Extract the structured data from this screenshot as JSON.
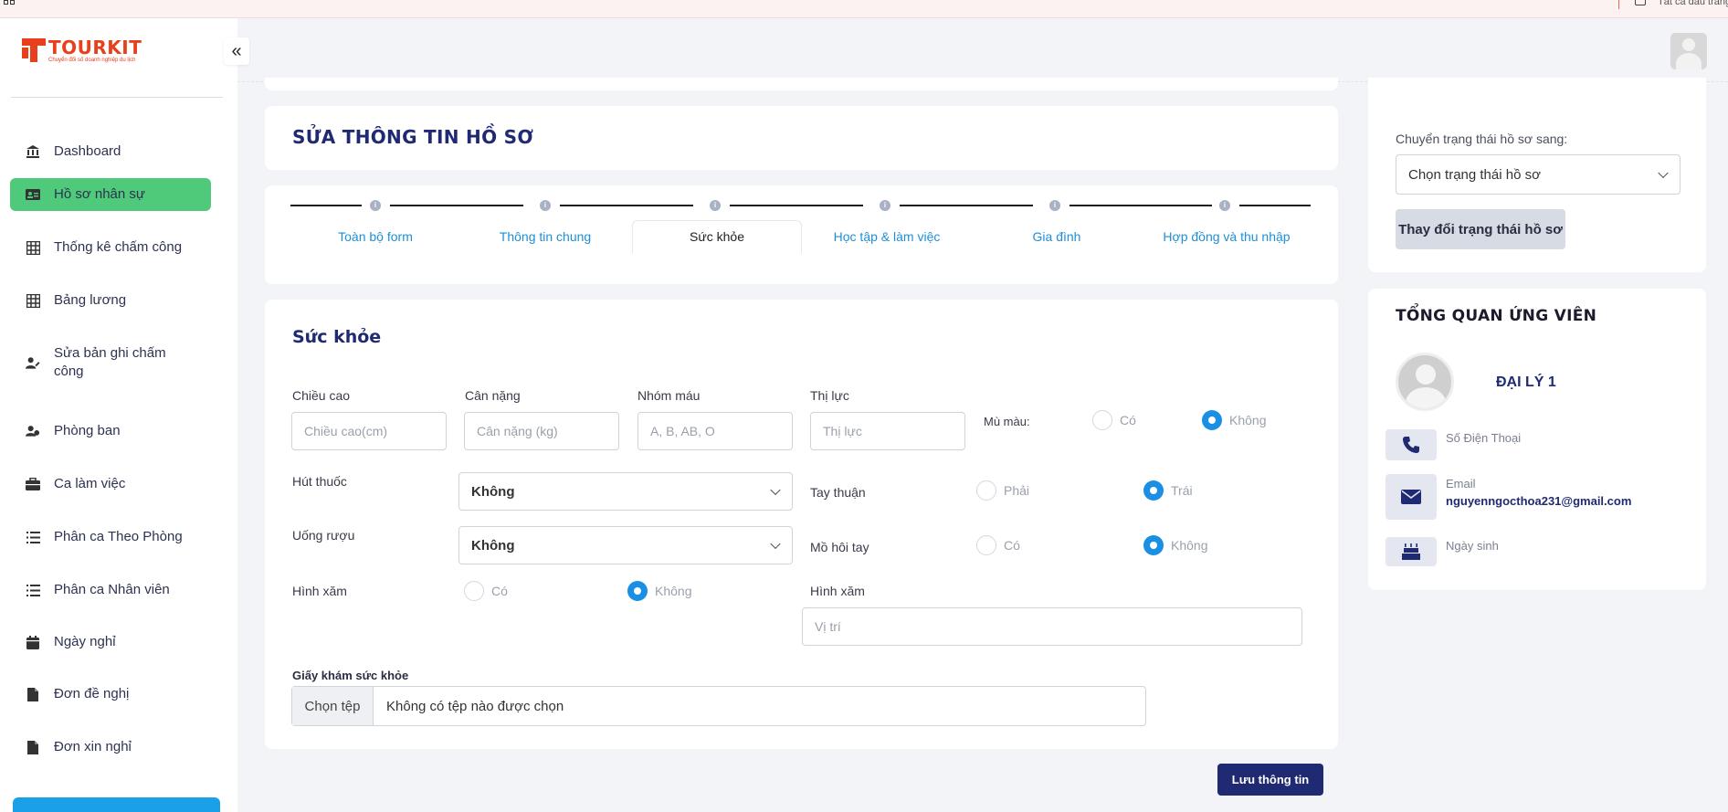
{
  "topbar": {
    "checkbox_label": "Tất cả dấu trang"
  },
  "brand": {
    "name": "TOURKIT",
    "tagline": "Chuyển đổi số doanh nghiệp du lịch"
  },
  "sidebar": {
    "items": [
      {
        "label": "Dashboard",
        "icon": "bank-icon"
      },
      {
        "label": "Hồ sơ nhân sự",
        "icon": "id-card-icon",
        "active": true
      },
      {
        "label": "Thống kê chấm công",
        "icon": "table-icon"
      },
      {
        "label": "Bảng lương",
        "icon": "table-icon"
      },
      {
        "label": "Sửa bản ghi chấm công",
        "icon": "user-edit-icon"
      },
      {
        "label": "Phòng ban",
        "icon": "users-icon"
      },
      {
        "label": "Ca làm việc",
        "icon": "briefcase-icon"
      },
      {
        "label": "Phân ca Theo Phòng",
        "icon": "list-icon"
      },
      {
        "label": "Phân ca Nhân viên",
        "icon": "list-icon"
      },
      {
        "label": "Ngày nghỉ",
        "icon": "calendar-icon"
      },
      {
        "label": "Đơn đề nghị",
        "icon": "file-icon"
      },
      {
        "label": "Đơn xin nghỉ",
        "icon": "file-icon"
      }
    ],
    "active_color": "#4fc97a"
  },
  "page": {
    "title": "SỬA THÔNG TIN HỒ SƠ"
  },
  "steps": [
    {
      "label": "Toàn bộ form"
    },
    {
      "label": "Thông tin chung"
    },
    {
      "label": "Sức khỏe",
      "active": true
    },
    {
      "label": "Học tập & làm việc"
    },
    {
      "label": "Gia đình"
    },
    {
      "label": "Hợp đồng và thu nhập"
    }
  ],
  "health": {
    "title": "Sức khỏe",
    "height": {
      "label": "Chiều cao",
      "placeholder": "Chiều cao(cm)"
    },
    "weight": {
      "label": "Cân nặng",
      "placeholder": "Cân nặng (kg)"
    },
    "blood": {
      "label": "Nhóm máu",
      "placeholder": "A, B, AB, O"
    },
    "vision": {
      "label": "Thị lực",
      "placeholder": "Thị lực"
    },
    "colorblind": {
      "label": "Mù màu:",
      "opt1": "Có",
      "opt2": "Không",
      "selected": "Không"
    },
    "smoking": {
      "label": "Hút thuốc",
      "value": "Không"
    },
    "drinking": {
      "label": "Uống rượu",
      "value": "Không"
    },
    "handedness": {
      "label": "Tay thuận",
      "opt1": "Phải",
      "opt2": "Trái",
      "selected": "Trái"
    },
    "sweaty": {
      "label": "Mồ hôi tay",
      "opt1": "Có",
      "opt2": "Không",
      "selected": "Không"
    },
    "tattoo": {
      "label": "Hình xăm",
      "opt1": "Có",
      "opt2": "Không",
      "selected": "Không"
    },
    "tattoo_location": {
      "label": "Hình xăm",
      "placeholder": "Vị trí"
    },
    "certificate": {
      "label": "Giấy khám sức khỏe",
      "button": "Chọn tệp",
      "status": "Không có tệp nào được chọn"
    },
    "save": "Lưu thông tin"
  },
  "status_panel": {
    "label": "Chuyển trạng thái hồ sơ sang:",
    "select_value": "Chọn trạng thái hồ sơ",
    "button": "Thay đổi trạng thái hồ sơ"
  },
  "overview": {
    "title": "TỔNG QUAN ỨNG VIÊN",
    "name": "ĐẠI LÝ 1",
    "phone_label": "Số Điện Thoại",
    "email_label": "Email",
    "email_value": "nguyenngocthoa231@gmail.com",
    "dob_label": "Ngày sinh"
  },
  "colors": {
    "primary": "#1f2a72",
    "accent_blue": "#1a8fe3",
    "link": "#1e8fd6"
  }
}
